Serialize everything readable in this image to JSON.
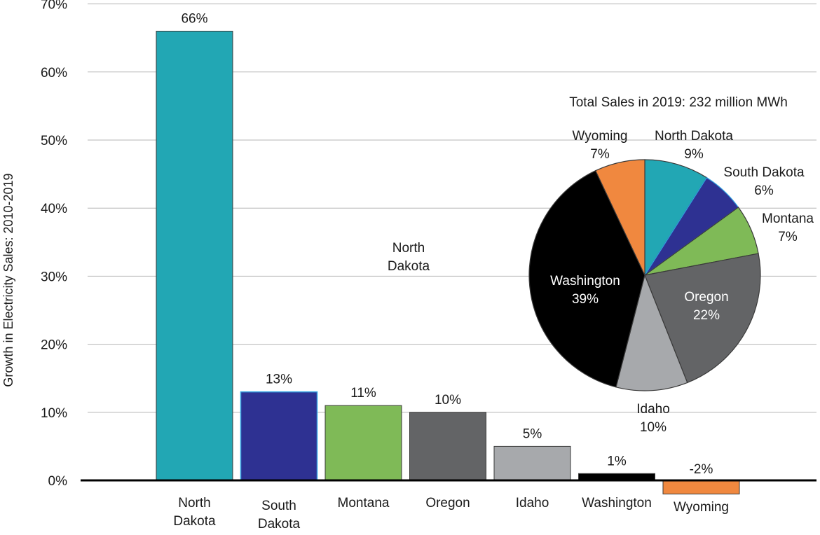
{
  "chart_data": [
    {
      "type": "bar",
      "ylabel": "Growth in Electricity Sales: 2010-2019",
      "ylim": [
        0,
        70
      ],
      "ytick_labels": [
        "0%",
        "10%",
        "20%",
        "30%",
        "40%",
        "50%",
        "60%",
        "70%"
      ],
      "grid": true,
      "categories": [
        [
          "North",
          "Dakota"
        ],
        [
          "South",
          "Dakota"
        ],
        [
          "Montana"
        ],
        [
          "Oregon"
        ],
        [
          "Idaho"
        ],
        [
          "Washington"
        ],
        [
          "Wyoming"
        ]
      ],
      "values": [
        66,
        13,
        11,
        10,
        5,
        1,
        -2
      ],
      "data_labels": [
        "66%",
        "13%",
        "11%",
        "10%",
        "5%",
        "1%",
        "-2%"
      ],
      "colors": [
        "#22a7b4",
        "#2e3192",
        "#7fba57",
        "#636466",
        "#a7a9ac",
        "#000000",
        "#f0883f"
      ],
      "annotation": [
        "North",
        "Dakota"
      ]
    },
    {
      "type": "pie",
      "title": "Total Sales in 2019: 232 million MWh",
      "labels": [
        "North Dakota",
        "South Dakota",
        "Montana",
        "Oregon",
        "Idaho",
        "Washington",
        "Wyoming"
      ],
      "values": [
        9,
        6,
        7,
        22,
        10,
        39,
        7
      ],
      "value_labels": [
        "9%",
        "6%",
        "7%",
        "22%",
        "10%",
        "39%",
        "7%"
      ],
      "colors": [
        "#22a7b4",
        "#2e3192",
        "#7fba57",
        "#636466",
        "#a7a9ac",
        "#000000",
        "#f0883f"
      ]
    }
  ]
}
